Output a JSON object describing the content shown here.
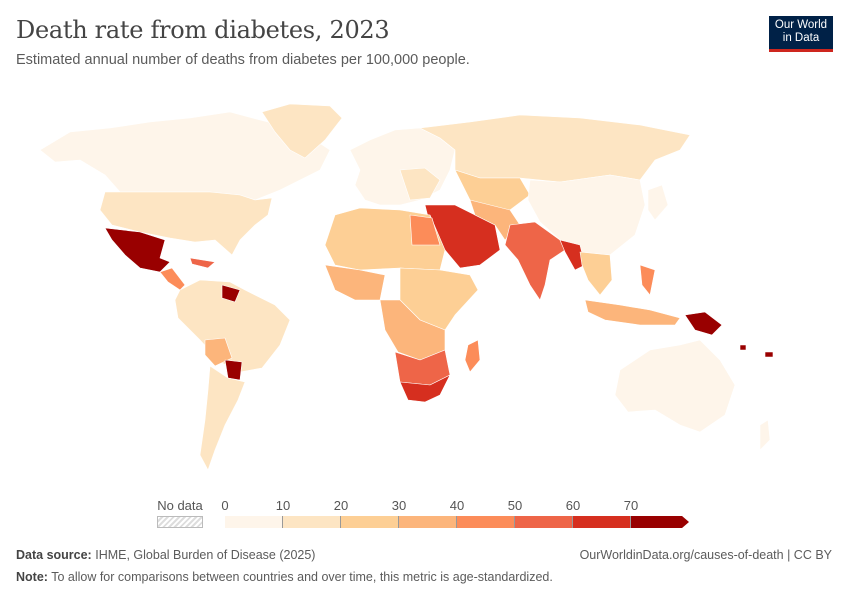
{
  "header": {
    "title": "Death rate from diabetes, 2023",
    "subtitle": "Estimated annual number of deaths from diabetes per 100,000 people."
  },
  "logo": {
    "line1": "Our World",
    "line2": "in Data",
    "bg": "#002147",
    "accent": "#ce261e"
  },
  "legend": {
    "no_data_label": "No data",
    "ticks": [
      "0",
      "10",
      "20",
      "30",
      "40",
      "50",
      "60",
      "70"
    ],
    "bins": [
      {
        "range": "0-10",
        "color": "#fef5ea"
      },
      {
        "range": "10-20",
        "color": "#fde5c3"
      },
      {
        "range": "20-30",
        "color": "#fdcf95"
      },
      {
        "range": "30-40",
        "color": "#fcb57b"
      },
      {
        "range": "40-50",
        "color": "#fc8c59"
      },
      {
        "range": "50-60",
        "color": "#ee6548"
      },
      {
        "range": "60-70",
        "color": "#d62f1f"
      },
      {
        "range": "70+",
        "color": "#990000"
      }
    ]
  },
  "footer": {
    "source_label": "Data source:",
    "source": "IHME, Global Burden of Disease (2025)",
    "url": "OurWorldinData.org/causes-of-death | CC BY",
    "note_label": "Note:",
    "note": "To allow for comparisons between countries and over time, this metric is age-standardized."
  }
}
